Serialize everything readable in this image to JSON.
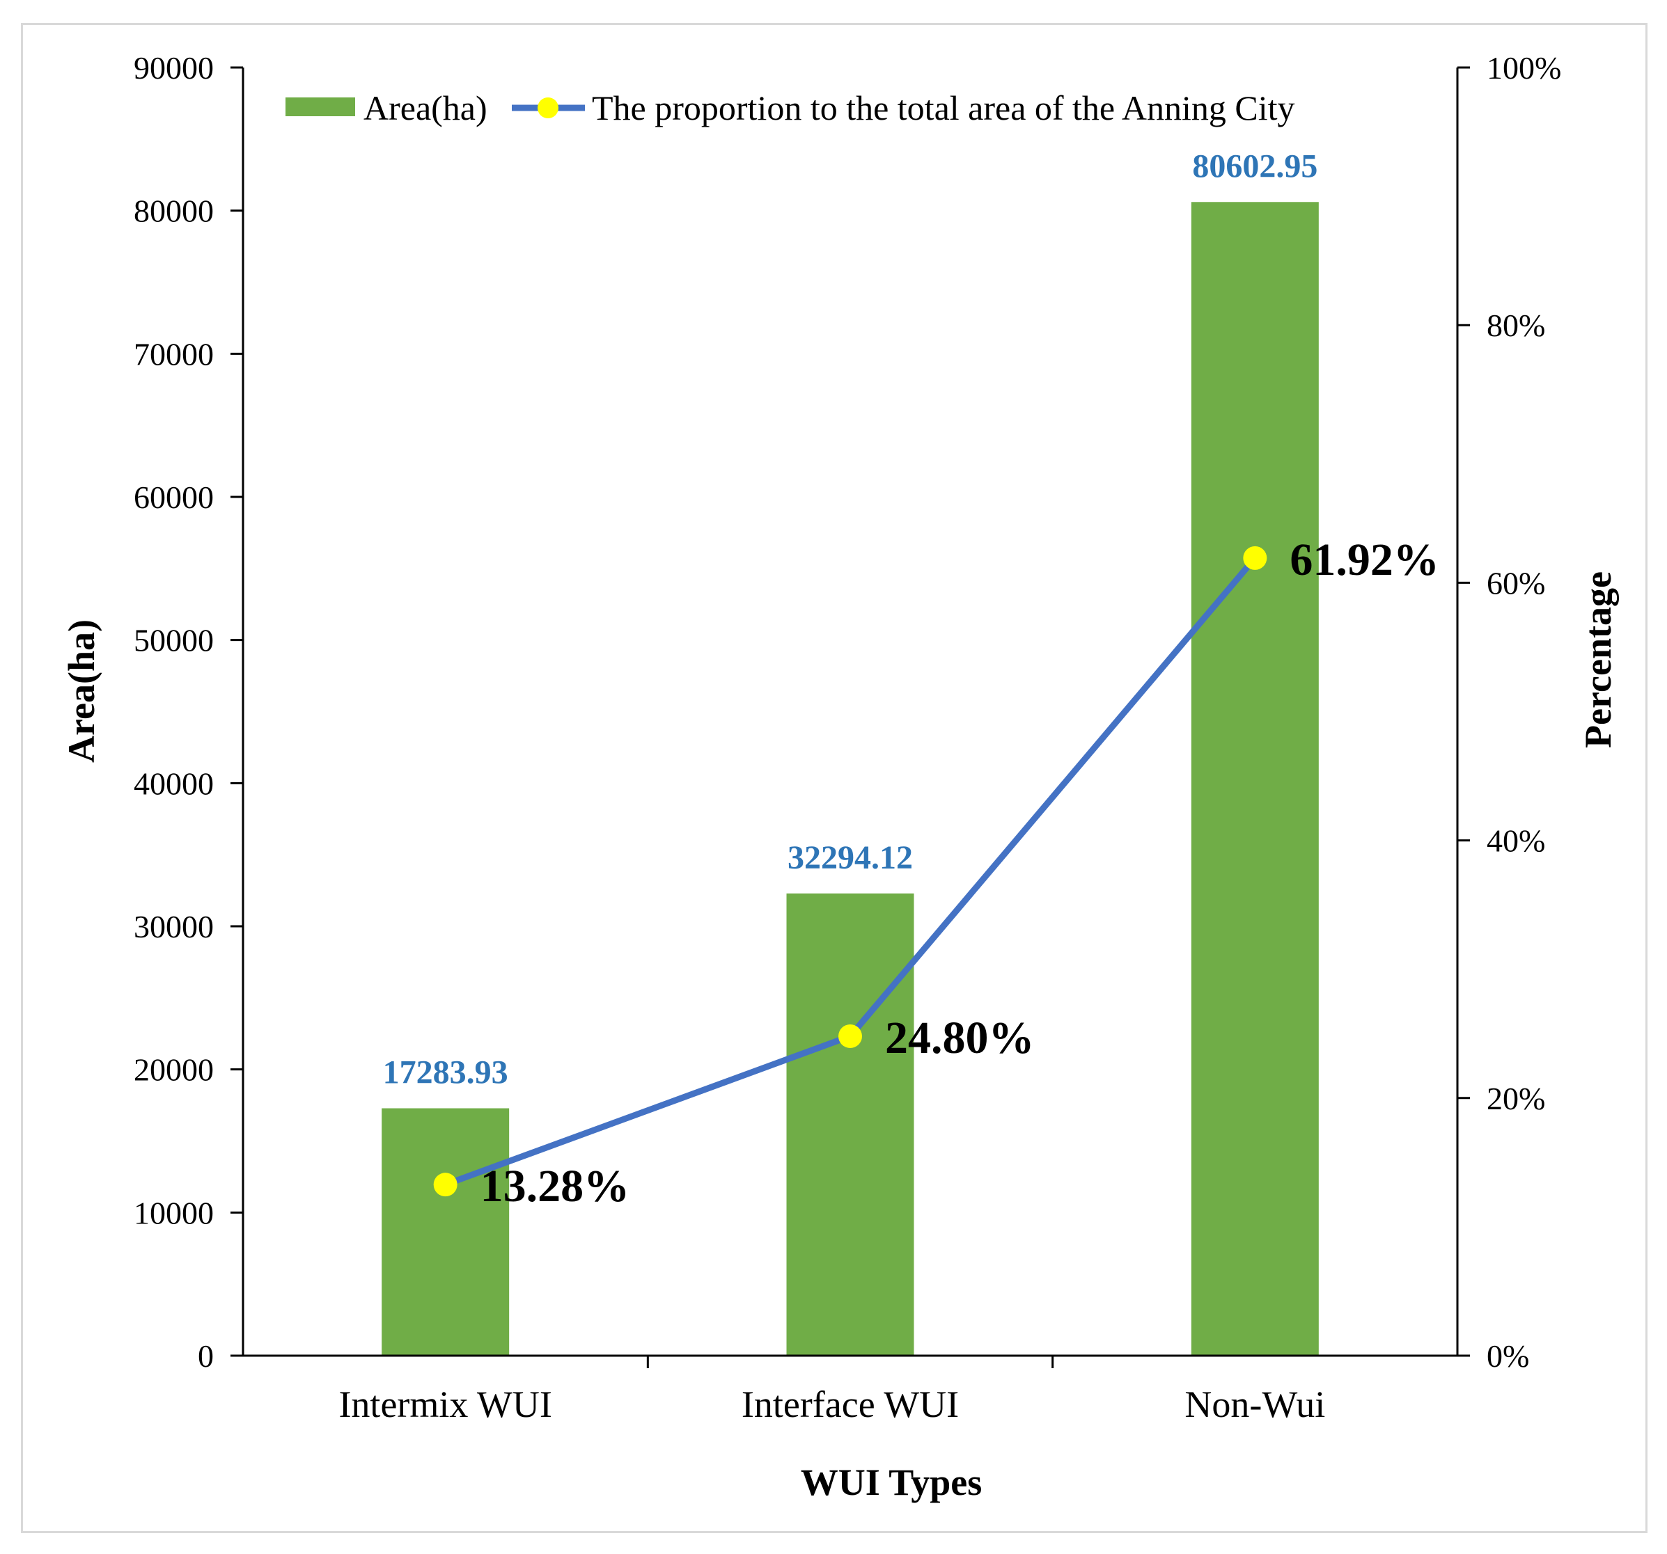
{
  "chart_data": {
    "type": "bar",
    "categories": [
      "Intermix WUI",
      "Interface WUI",
      "Non-Wui"
    ],
    "xlabel": "WUI Types",
    "ylabel": "Area(ha)",
    "y2label": "Percentage",
    "ylim": [
      0,
      90000
    ],
    "y2lim": [
      0,
      1.0
    ],
    "yticks": [
      "0",
      "10000",
      "20000",
      "30000",
      "40000",
      "50000",
      "60000",
      "70000",
      "80000",
      "90000"
    ],
    "y2ticks": [
      "0%",
      "20%",
      "40%",
      "60%",
      "80%",
      "100%"
    ],
    "legend_position": "top",
    "series": [
      {
        "name": "Area(ha)",
        "type": "bar",
        "axis": "left",
        "color": "#70ad47",
        "values": [
          17283.93,
          32294.12,
          80602.95
        ],
        "labels": [
          "17283.93",
          "32294.12",
          "80602.95"
        ],
        "label_color": "#2e75b6"
      },
      {
        "name": "The proportion to the total area of the Anning City",
        "type": "line",
        "axis": "right",
        "color": "#4472c4",
        "marker_color": "#ffff00",
        "values": [
          0.1328,
          0.248,
          0.6192
        ],
        "labels": [
          "13.28%",
          "24.80%",
          "61.92%"
        ],
        "label_color": "#000000"
      }
    ],
    "grid": false
  }
}
